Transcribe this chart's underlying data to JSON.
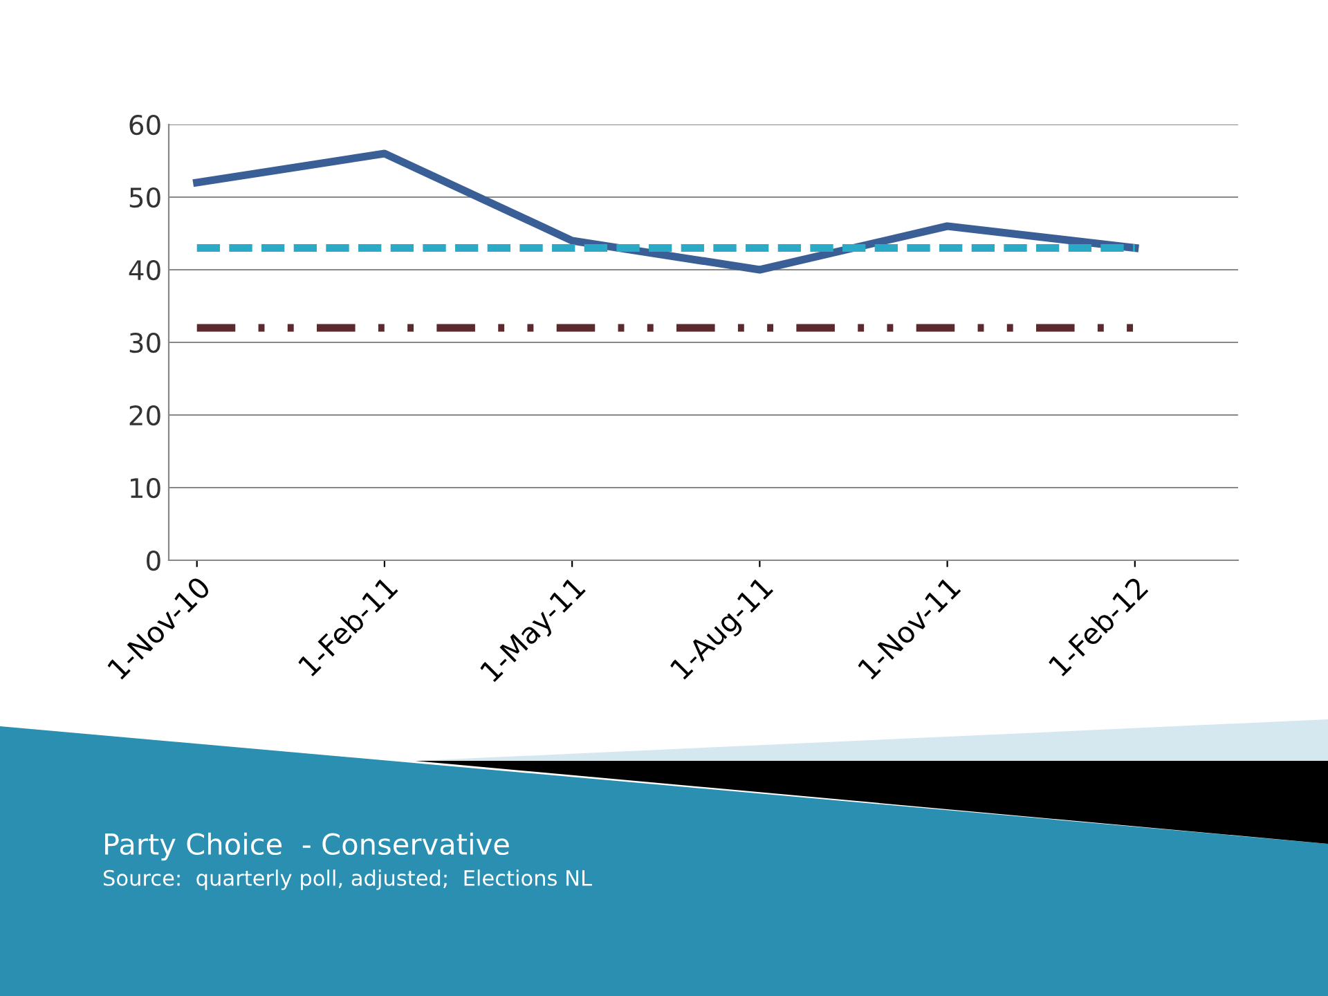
{
  "chart_data": {
    "type": "line",
    "categories": [
      "1-Nov-10",
      "1-Feb-11",
      "1-May-11",
      "1-Aug-11",
      "1-Nov-11",
      "1-Feb-12"
    ],
    "series": [
      {
        "color": "#3a5f96",
        "values": [
          52,
          56,
          44,
          40,
          46,
          43
        ],
        "line_style": "solid"
      },
      {
        "color": "#2aaac6",
        "values": [
          43,
          43,
          43,
          43,
          43,
          43
        ],
        "line_style": "dashed"
      },
      {
        "color": "#5a2a2e",
        "values": [
          32,
          32,
          32,
          32,
          32,
          32
        ],
        "line_style": "dashdotdot"
      }
    ],
    "ylim": [
      0,
      60
    ],
    "yticks": [
      0,
      10,
      20,
      30,
      40,
      50,
      60
    ],
    "grid": "y",
    "legend": false,
    "marker": "none",
    "annotations": [
      "Party Choice  - Conservative",
      "Source:  quarterly poll, adjusted;  Elections NL"
    ]
  }
}
